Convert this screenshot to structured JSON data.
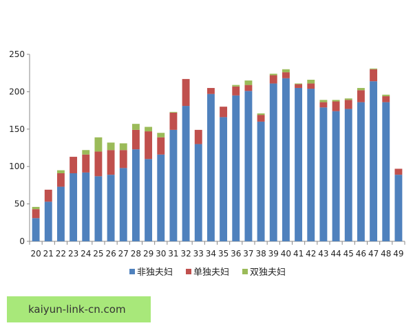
{
  "chart_data": {
    "type": "bar",
    "stacked": true,
    "categories": [
      "20",
      "21",
      "22",
      "23",
      "24",
      "25",
      "26",
      "27",
      "28",
      "29",
      "30",
      "31",
      "32",
      "33",
      "34",
      "35",
      "36",
      "37",
      "38",
      "39",
      "40",
      "41",
      "42",
      "43",
      "44",
      "45",
      "46",
      "47",
      "48",
      "49"
    ],
    "series": [
      {
        "name": "非独夫妇",
        "color": "#4f81bd",
        "values": [
          31,
          53,
          73,
          91,
          92,
          87,
          89,
          98,
          123,
          110,
          116,
          149,
          181,
          130,
          197,
          166,
          195,
          201,
          160,
          211,
          218,
          205,
          204,
          179,
          174,
          177,
          186,
          214,
          186,
          89
        ]
      },
      {
        "name": "单独夫妇",
        "color": "#c0504d",
        "values": [
          12,
          16,
          18,
          22,
          24,
          33,
          33,
          24,
          26,
          37,
          23,
          23,
          36,
          19,
          8,
          14,
          12,
          8,
          9,
          11,
          8,
          5,
          7,
          7,
          13,
          12,
          16,
          16,
          8,
          8
        ]
      },
      {
        "name": "双独夫妇",
        "color": "#9bbb59",
        "values": [
          3,
          0,
          4,
          0,
          6,
          19,
          10,
          9,
          8,
          6,
          6,
          1,
          0,
          0,
          0,
          0,
          2,
          6,
          2,
          2,
          4,
          1,
          5,
          3,
          2,
          2,
          3,
          1,
          2,
          0
        ]
      }
    ],
    "ylim": [
      0,
      250
    ],
    "yticks": [
      0,
      50,
      100,
      150,
      200,
      250
    ],
    "title": "",
    "xlabel": "",
    "ylabel": "",
    "grid": false,
    "legend_position": "bottom"
  },
  "watermark_text": "kaiyun-link-cn.com"
}
